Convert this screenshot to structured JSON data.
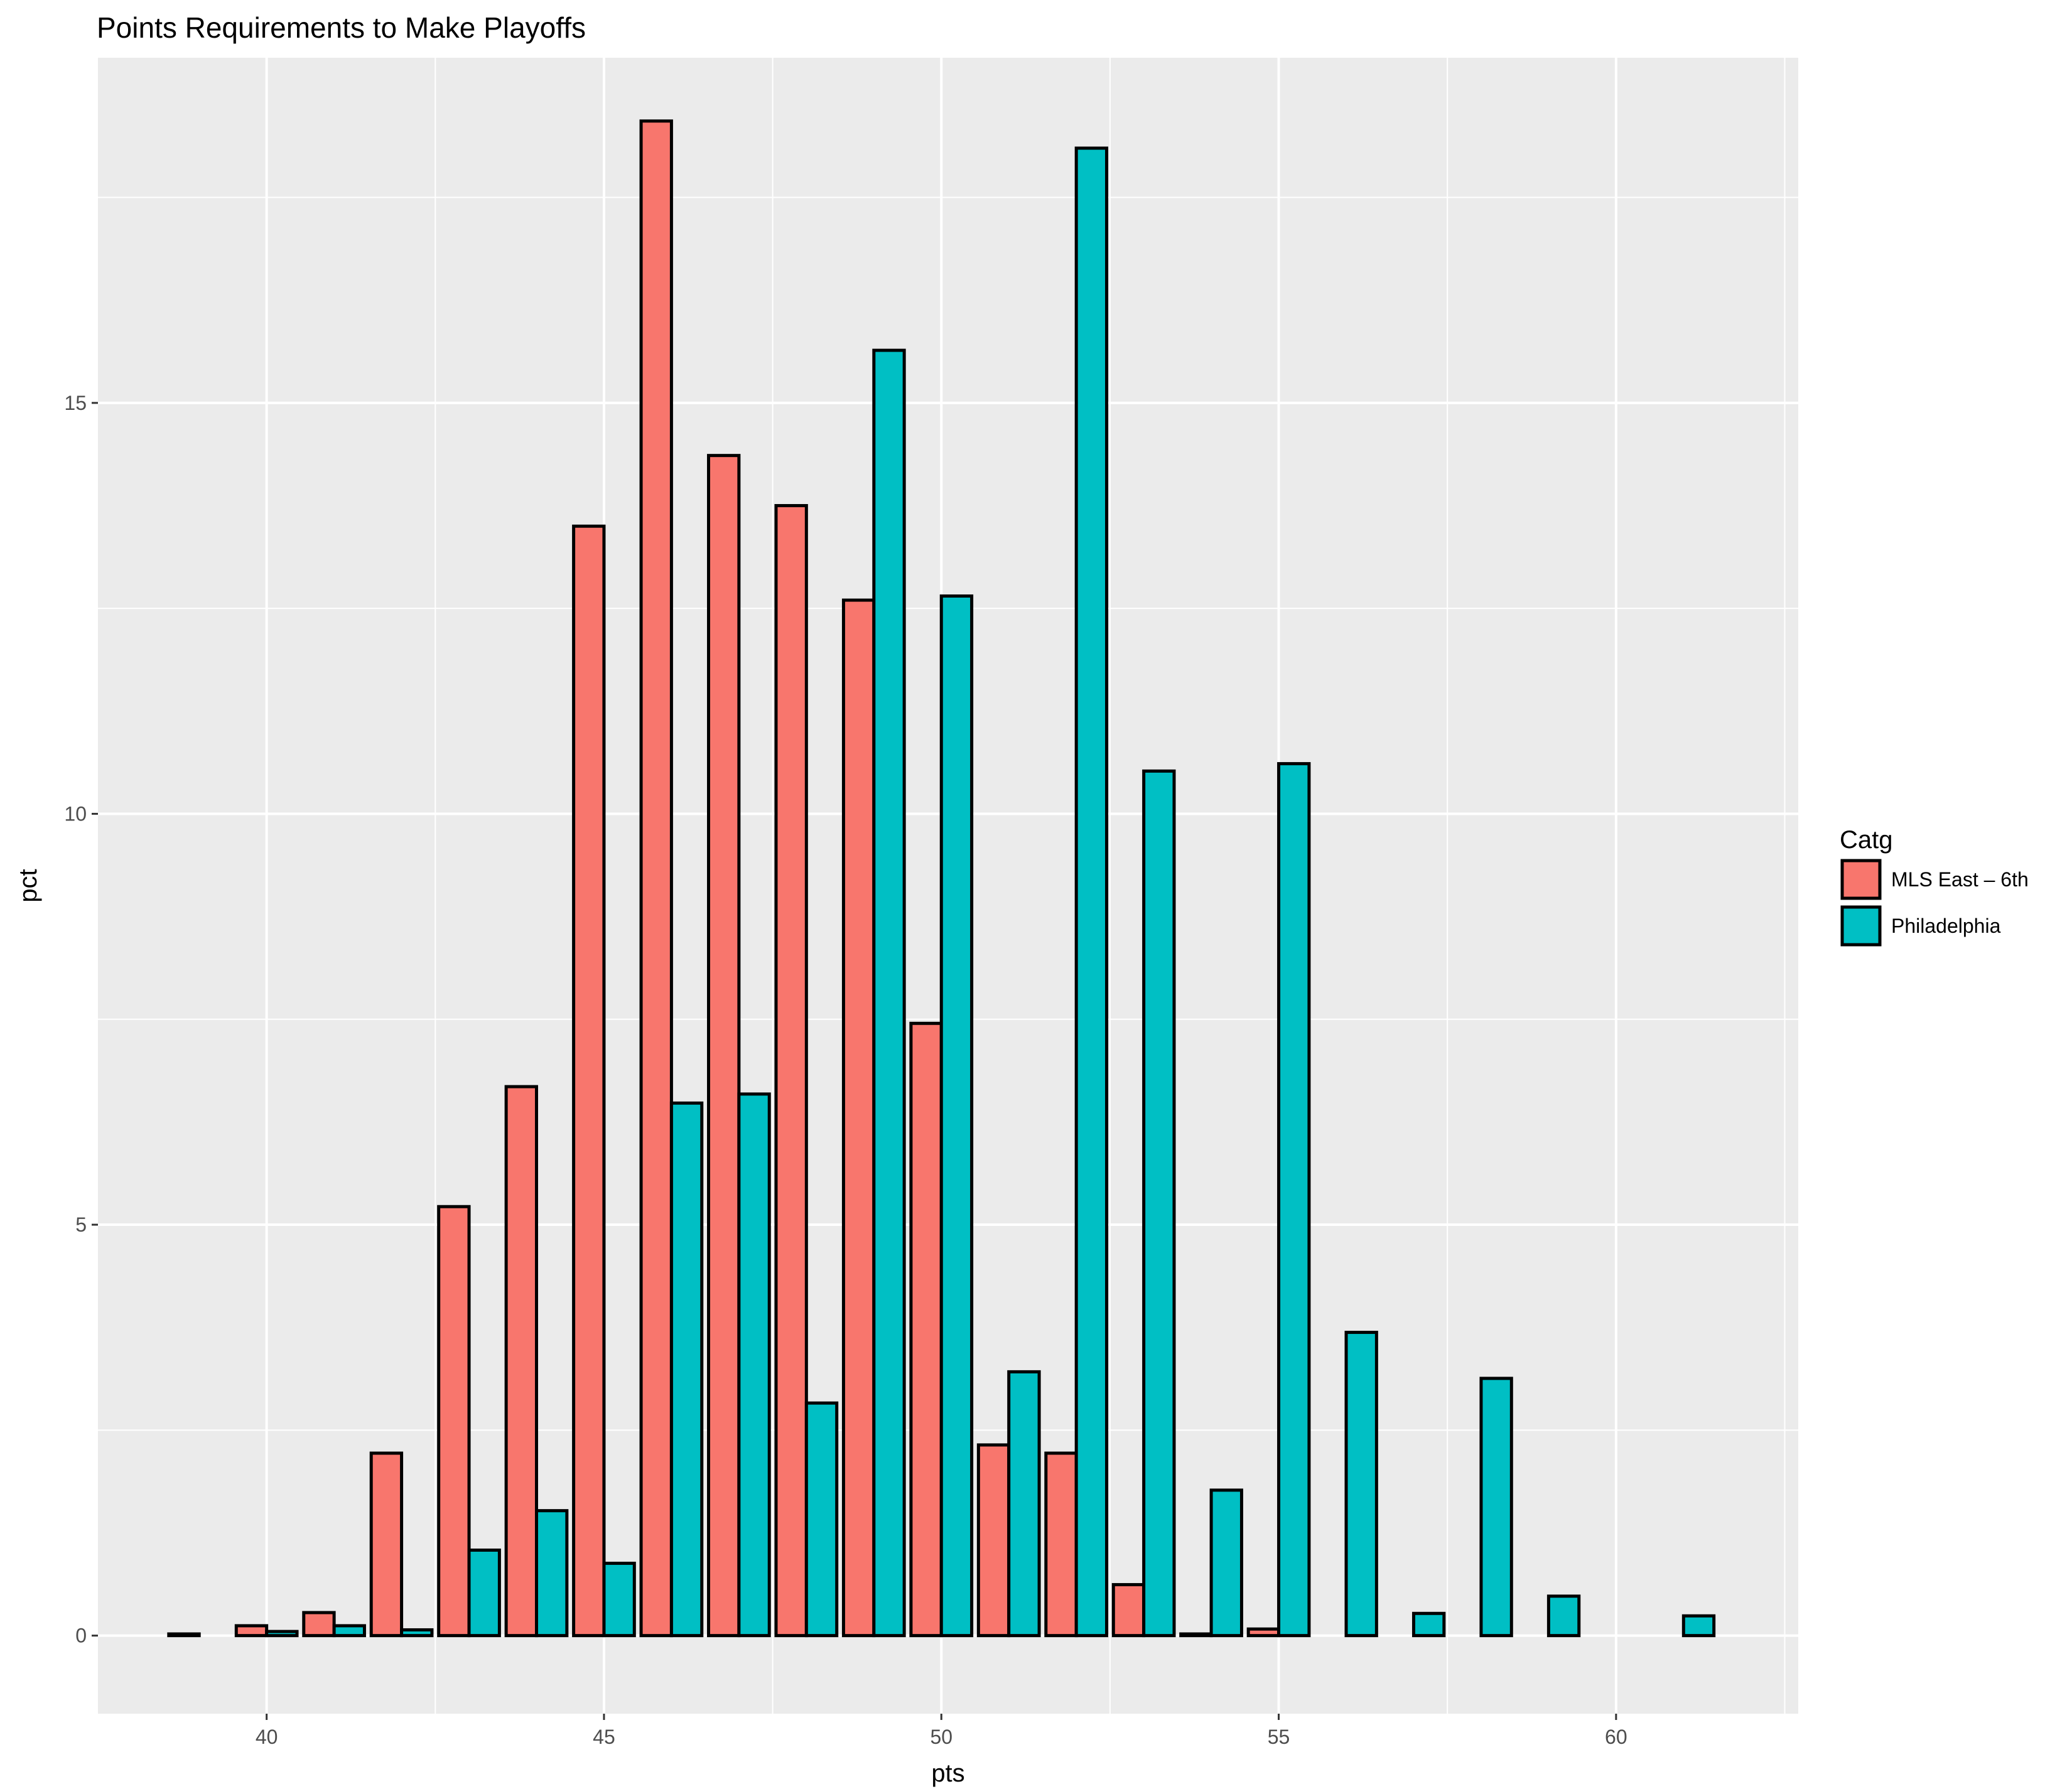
{
  "chart_data": {
    "type": "bar",
    "title": "Points Requirements to Make Playoffs",
    "xlabel": "pts",
    "ylabel": "pct",
    "x": [
      39,
      40,
      41,
      42,
      43,
      44,
      45,
      46,
      47,
      48,
      49,
      50,
      51,
      52,
      53,
      54,
      55,
      56,
      57,
      58,
      59,
      60,
      61
    ],
    "series": [
      {
        "name": "MLS East – 6th",
        "color": "#F8766D",
        "values": [
          0.02,
          0.12,
          0.28,
          2.22,
          5.22,
          6.68,
          13.5,
          18.43,
          14.36,
          13.75,
          12.6,
          7.45,
          2.32,
          2.22,
          0.62,
          0.02,
          0.08,
          0,
          0,
          0,
          0,
          0,
          0
        ]
      },
      {
        "name": "Philadelphia",
        "color": "#00BFC4",
        "values": [
          0,
          0.05,
          0.12,
          0.07,
          1.04,
          1.52,
          0.88,
          6.48,
          6.59,
          2.83,
          15.64,
          12.65,
          3.21,
          18.1,
          10.52,
          1.77,
          10.61,
          3.69,
          0.27,
          3.13,
          0.48,
          0,
          0.24
        ]
      }
    ],
    "xlim": [
      37.5,
      62.7
    ],
    "ylim": [
      -0.95,
      19.2
    ],
    "x_ticks": [
      "40",
      "45",
      "50",
      "55",
      "60"
    ],
    "y_ticks": [
      "0",
      "5",
      "10",
      "15"
    ],
    "legend": {
      "title": "Catg",
      "position": "right"
    },
    "grid": true
  }
}
